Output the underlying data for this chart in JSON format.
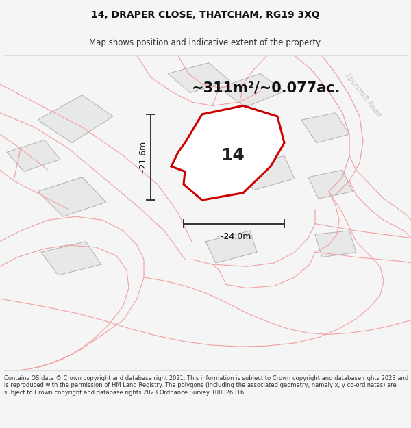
{
  "title": "14, DRAPER CLOSE, THATCHAM, RG19 3XQ",
  "subtitle": "Map shows position and indicative extent of the property.",
  "area_text": "~311m²/~0.077ac.",
  "label": "14",
  "dim_width": "~24.0m",
  "dim_height": "~21.6m",
  "footer": "Contains OS data © Crown copyright and database right 2021. This information is subject to Crown copyright and database rights 2023 and is reproduced with the permission of HM Land Registry. The polygons (including the associated geometry, namely x, y co-ordinates) are subject to Crown copyright and database rights 2023 Ordnance Survey 100026316.",
  "road_label": "Spurcroft Road",
  "bg_color": "#f5f5f5",
  "map_bg": "#ffffff",
  "property_fill": "#ffffff",
  "property_edge": "#cc0000",
  "neighbor_fill": "#e8e8e8",
  "neighbor_edge": "#b0b0b0",
  "road_line_color": "#f0a0a0",
  "dim_line_color": "#333333",
  "road_label_color": "#c0c0c0",
  "title_fontsize": 10,
  "subtitle_fontsize": 8.5,
  "area_fontsize": 15,
  "label_fontsize": 18,
  "dim_fontsize": 9,
  "footer_fontsize": 6.0
}
